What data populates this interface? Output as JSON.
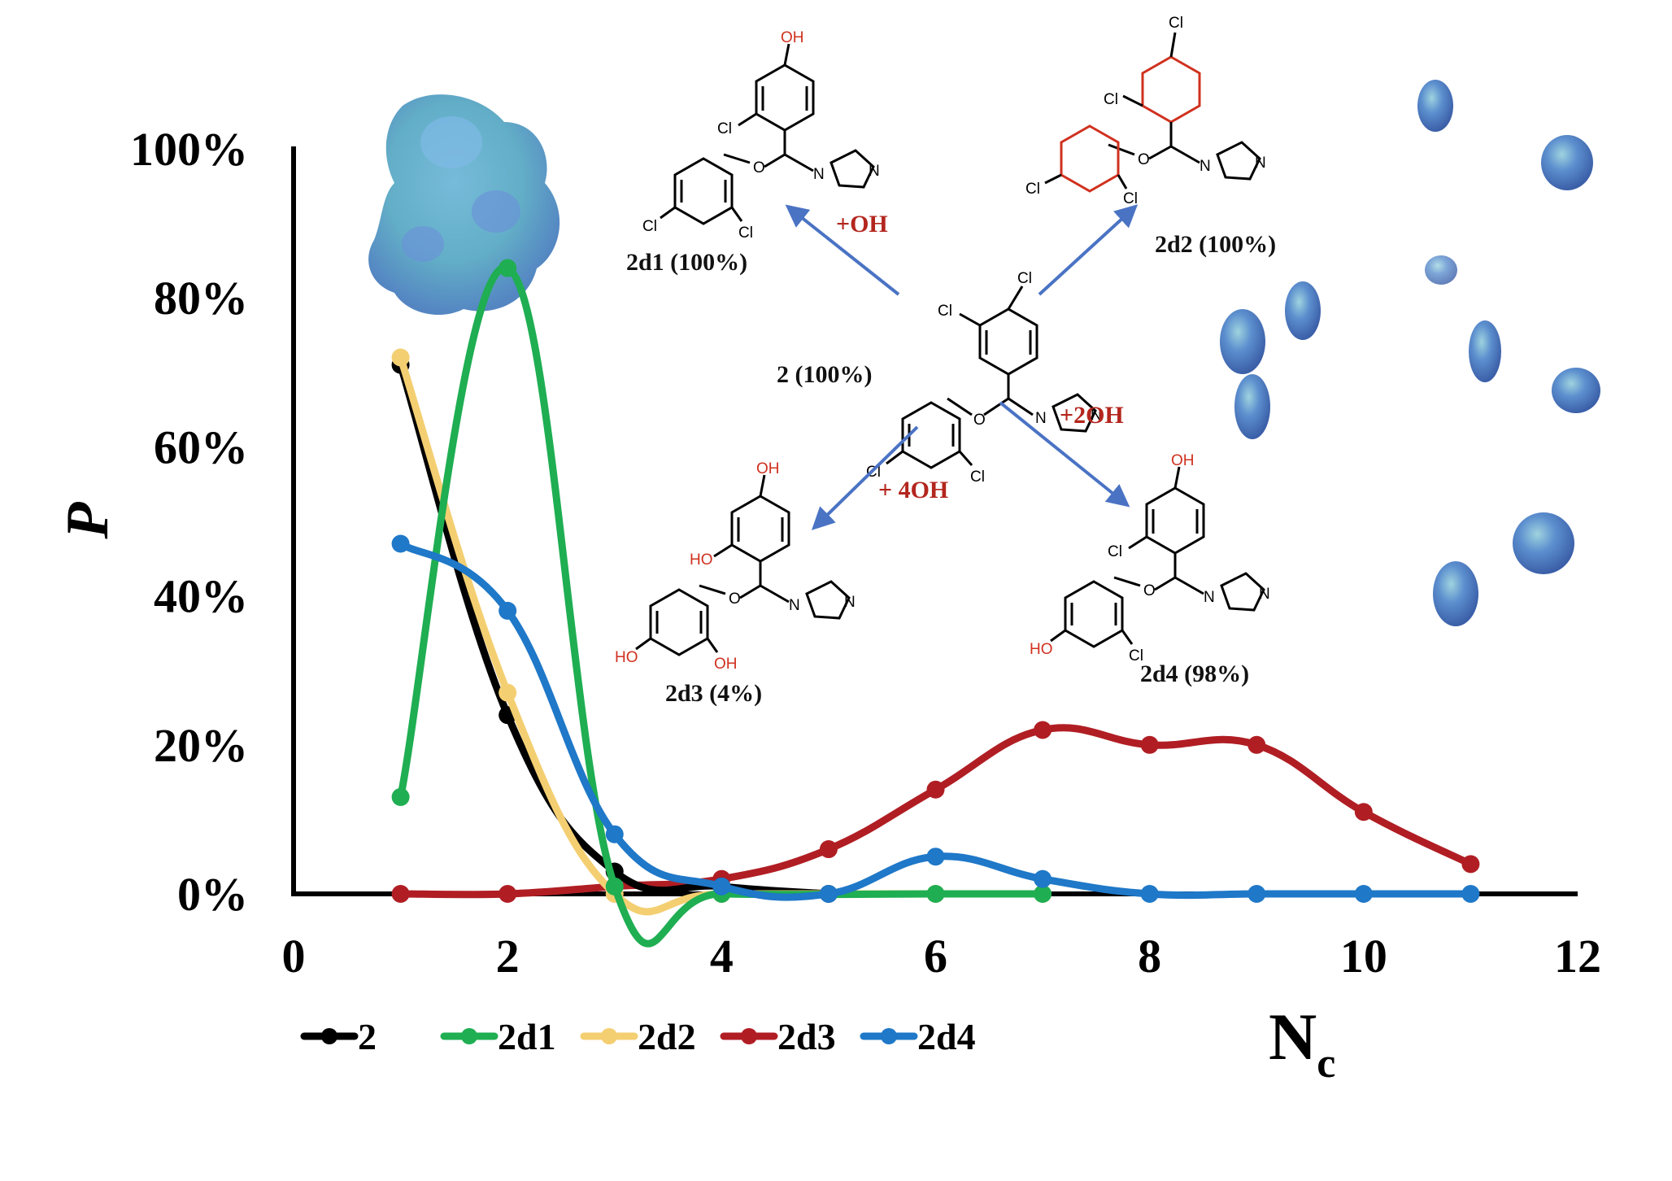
{
  "chart_data": {
    "type": "line",
    "xlabel": "N",
    "xlabel_sub": "c",
    "ylabel": "P",
    "xlim": [
      0,
      12
    ],
    "ylim": [
      0,
      100
    ],
    "x_ticks": [
      "0",
      "2",
      "4",
      "6",
      "8",
      "10",
      "12"
    ],
    "y_ticks": [
      "0%",
      "20%",
      "40%",
      "60%",
      "80%",
      "100%"
    ],
    "legend_position": "bottom-left",
    "series": [
      {
        "name": "2",
        "color": "#000000",
        "x": [
          1,
          2,
          3,
          4,
          5
        ],
        "values": [
          71,
          24,
          3,
          1,
          0
        ]
      },
      {
        "name": "2d1",
        "color": "#1fae52",
        "x": [
          1,
          2,
          3,
          4,
          6,
          7
        ],
        "values": [
          13,
          84,
          1,
          0,
          0,
          0
        ]
      },
      {
        "name": "2d2",
        "color": "#f4cf72",
        "x": [
          1,
          2,
          3,
          4,
          6,
          7
        ],
        "values": [
          72,
          27,
          0,
          0,
          0,
          0
        ]
      },
      {
        "name": "2d3",
        "color": "#b01e24",
        "x": [
          1,
          2,
          3,
          4,
          5,
          6,
          7,
          8,
          9,
          10,
          11
        ],
        "values": [
          0,
          0,
          1,
          2,
          6,
          14,
          22,
          20,
          20,
          11,
          4
        ]
      },
      {
        "name": "2d4",
        "color": "#1f78c8",
        "x": [
          1,
          2,
          3,
          4,
          5,
          6,
          7,
          8,
          9,
          10,
          11
        ],
        "values": [
          47,
          38,
          8,
          1,
          0,
          5,
          2,
          0,
          0,
          0,
          0
        ]
      }
    ]
  },
  "molecules": {
    "center": {
      "caption": "2 (100%)"
    },
    "top_left": {
      "caption": "2d1 (100%)",
      "reaction": "+OH"
    },
    "top_right": {
      "caption": "2d2 (100%)"
    },
    "bottom_left": {
      "caption": "2d3 (4%)",
      "reaction": "+ 4OH"
    },
    "bottom_right": {
      "caption": "2d4 (98%)",
      "reaction": "+2OH"
    }
  },
  "atoms": {
    "cl": "Cl",
    "oh": "OH",
    "ho": "HO",
    "o": "O",
    "n": "N"
  }
}
